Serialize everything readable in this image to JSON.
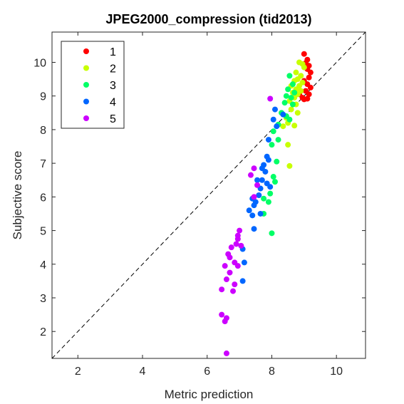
{
  "chart_data": {
    "type": "scatter",
    "title": "JPEG2000_compression (tid2013)",
    "xlabel": "Metric prediction",
    "ylabel": "Subjective score",
    "xlim": [
      1.2,
      10.9
    ],
    "ylim": [
      1.2,
      10.9
    ],
    "xticks": [
      2,
      4,
      6,
      8,
      10
    ],
    "yticks": [
      2,
      3,
      4,
      5,
      6,
      7,
      8,
      9,
      10
    ],
    "grid": false,
    "legend_position": "top-left",
    "reference_line": "y = x (dashed)",
    "series": [
      {
        "name": "1",
        "color": "#ff0000",
        "points": [
          [
            9.0,
            10.25
          ],
          [
            9.1,
            10.08
          ],
          [
            9.05,
            9.98
          ],
          [
            9.15,
            9.9
          ],
          [
            9.1,
            9.8
          ],
          [
            9.2,
            9.7
          ],
          [
            9.15,
            9.55
          ],
          [
            9.0,
            9.45
          ],
          [
            9.1,
            9.35
          ],
          [
            9.2,
            9.25
          ],
          [
            9.05,
            9.15
          ],
          [
            9.15,
            9.05
          ],
          [
            8.95,
            8.95
          ],
          [
            9.0,
            8.9
          ],
          [
            8.85,
            9.05
          ],
          [
            9.1,
            8.92
          ]
        ]
      },
      {
        "name": "2",
        "color": "#c8ff00",
        "points": [
          [
            8.85,
            10.0
          ],
          [
            8.95,
            9.95
          ],
          [
            9.0,
            9.85
          ],
          [
            8.75,
            9.7
          ],
          [
            8.9,
            9.6
          ],
          [
            8.8,
            9.5
          ],
          [
            8.7,
            9.45
          ],
          [
            8.95,
            9.4
          ],
          [
            8.85,
            9.3
          ],
          [
            8.6,
            9.3
          ],
          [
            8.75,
            9.2
          ],
          [
            8.9,
            9.15
          ],
          [
            8.65,
            9.1
          ],
          [
            8.8,
            9.05
          ],
          [
            8.7,
            8.95
          ],
          [
            8.55,
            8.85
          ],
          [
            8.75,
            8.75
          ],
          [
            8.6,
            8.6
          ],
          [
            8.8,
            8.5
          ],
          [
            8.45,
            8.35
          ],
          [
            8.5,
            8.2
          ],
          [
            8.7,
            8.12
          ],
          [
            8.35,
            8.1
          ],
          [
            8.5,
            7.55
          ],
          [
            8.55,
            6.92
          ]
        ]
      },
      {
        "name": "3",
        "color": "#00ff66",
        "points": [
          [
            8.55,
            9.6
          ],
          [
            8.65,
            9.35
          ],
          [
            8.5,
            9.2
          ],
          [
            8.7,
            9.1
          ],
          [
            8.45,
            9.0
          ],
          [
            8.6,
            8.95
          ],
          [
            8.4,
            8.8
          ],
          [
            8.65,
            8.75
          ],
          [
            8.3,
            8.5
          ],
          [
            8.45,
            8.4
          ],
          [
            8.55,
            8.3
          ],
          [
            8.2,
            8.15
          ],
          [
            8.05,
            7.95
          ],
          [
            8.2,
            7.7
          ],
          [
            8.0,
            7.55
          ],
          [
            8.15,
            7.05
          ],
          [
            8.05,
            6.6
          ],
          [
            8.1,
            6.45
          ],
          [
            7.95,
            6.1
          ],
          [
            7.75,
            5.95
          ],
          [
            7.9,
            5.85
          ],
          [
            7.75,
            5.5
          ],
          [
            8.0,
            4.92
          ]
        ]
      },
      {
        "name": "4",
        "color": "#0066ff",
        "points": [
          [
            8.35,
            8.45
          ],
          [
            8.1,
            8.6
          ],
          [
            8.05,
            8.3
          ],
          [
            8.15,
            8.1
          ],
          [
            7.9,
            7.7
          ],
          [
            7.9,
            7.1
          ],
          [
            7.85,
            7.2
          ],
          [
            7.75,
            6.95
          ],
          [
            7.7,
            6.85
          ],
          [
            7.8,
            6.75
          ],
          [
            7.55,
            6.5
          ],
          [
            7.7,
            6.5
          ],
          [
            7.85,
            6.4
          ],
          [
            7.95,
            6.3
          ],
          [
            7.65,
            6.25
          ],
          [
            7.6,
            6.05
          ],
          [
            7.4,
            5.95
          ],
          [
            7.5,
            5.85
          ],
          [
            7.45,
            5.75
          ],
          [
            7.3,
            5.6
          ],
          [
            7.4,
            5.45
          ],
          [
            7.65,
            5.5
          ],
          [
            7.45,
            5.05
          ],
          [
            7.1,
            4.45
          ],
          [
            7.15,
            4.05
          ],
          [
            7.1,
            3.5
          ]
        ]
      },
      {
        "name": "5",
        "color": "#cc00ff",
        "points": [
          [
            7.95,
            8.92
          ],
          [
            7.45,
            6.85
          ],
          [
            7.35,
            6.65
          ],
          [
            7.55,
            6.35
          ],
          [
            7.45,
            6.0
          ],
          [
            7.0,
            5.0
          ],
          [
            6.95,
            4.85
          ],
          [
            6.95,
            4.75
          ],
          [
            6.9,
            4.6
          ],
          [
            6.75,
            4.5
          ],
          [
            7.05,
            4.55
          ],
          [
            6.65,
            4.3
          ],
          [
            6.7,
            4.2
          ],
          [
            6.55,
            3.95
          ],
          [
            6.85,
            4.05
          ],
          [
            6.95,
            3.95
          ],
          [
            6.7,
            3.75
          ],
          [
            6.6,
            3.55
          ],
          [
            6.85,
            3.4
          ],
          [
            6.45,
            3.25
          ],
          [
            6.8,
            3.2
          ],
          [
            6.6,
            2.4
          ],
          [
            6.45,
            2.5
          ],
          [
            6.55,
            2.3
          ],
          [
            6.6,
            1.35
          ]
        ]
      }
    ]
  }
}
